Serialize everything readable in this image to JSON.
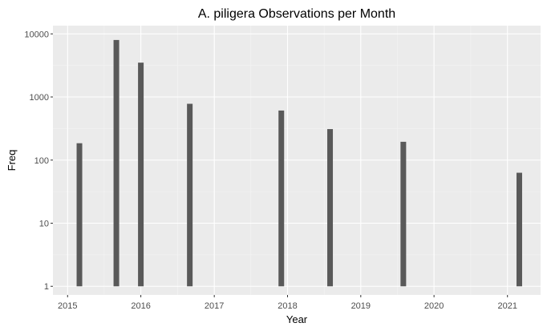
{
  "chart_data": {
    "type": "bar",
    "title": "A. piligera Observations per Month",
    "xlabel": "Year",
    "ylabel": "Freq",
    "y_scale": "log10",
    "ylim": [
      0.73,
      13500
    ],
    "xlim": [
      "2014-10-20",
      "2021-06-15"
    ],
    "grid": true,
    "legend": "none",
    "x_ticks": [
      {
        "date": "2015-01-01",
        "label": "2015"
      },
      {
        "date": "2016-01-01",
        "label": "2016"
      },
      {
        "date": "2017-01-01",
        "label": "2017"
      },
      {
        "date": "2018-01-01",
        "label": "2018"
      },
      {
        "date": "2019-01-01",
        "label": "2019"
      },
      {
        "date": "2020-01-01",
        "label": "2020"
      },
      {
        "date": "2021-01-01",
        "label": "2021"
      }
    ],
    "y_ticks": [
      {
        "value": 1,
        "label": "1"
      },
      {
        "value": 10,
        "label": "10"
      },
      {
        "value": 100,
        "label": "100"
      },
      {
        "value": 1000,
        "label": "1000"
      },
      {
        "value": 10000,
        "label": "10000"
      }
    ],
    "points": [
      {
        "x": "2015-03-01",
        "y": 185
      },
      {
        "x": "2015-09-01",
        "y": 8000
      },
      {
        "x": "2016-01-01",
        "y": 3500
      },
      {
        "x": "2016-09-01",
        "y": 780
      },
      {
        "x": "2017-12-01",
        "y": 610
      },
      {
        "x": "2018-08-01",
        "y": 310
      },
      {
        "x": "2019-08-01",
        "y": 195
      },
      {
        "x": "2021-03-01",
        "y": 63
      }
    ],
    "colors": {
      "bar": "#595959",
      "panel": "#ebebeb",
      "grid_major": "#ffffff",
      "grid_minor": "#f5f5f5",
      "tick_label": "#4d4d4d"
    }
  }
}
